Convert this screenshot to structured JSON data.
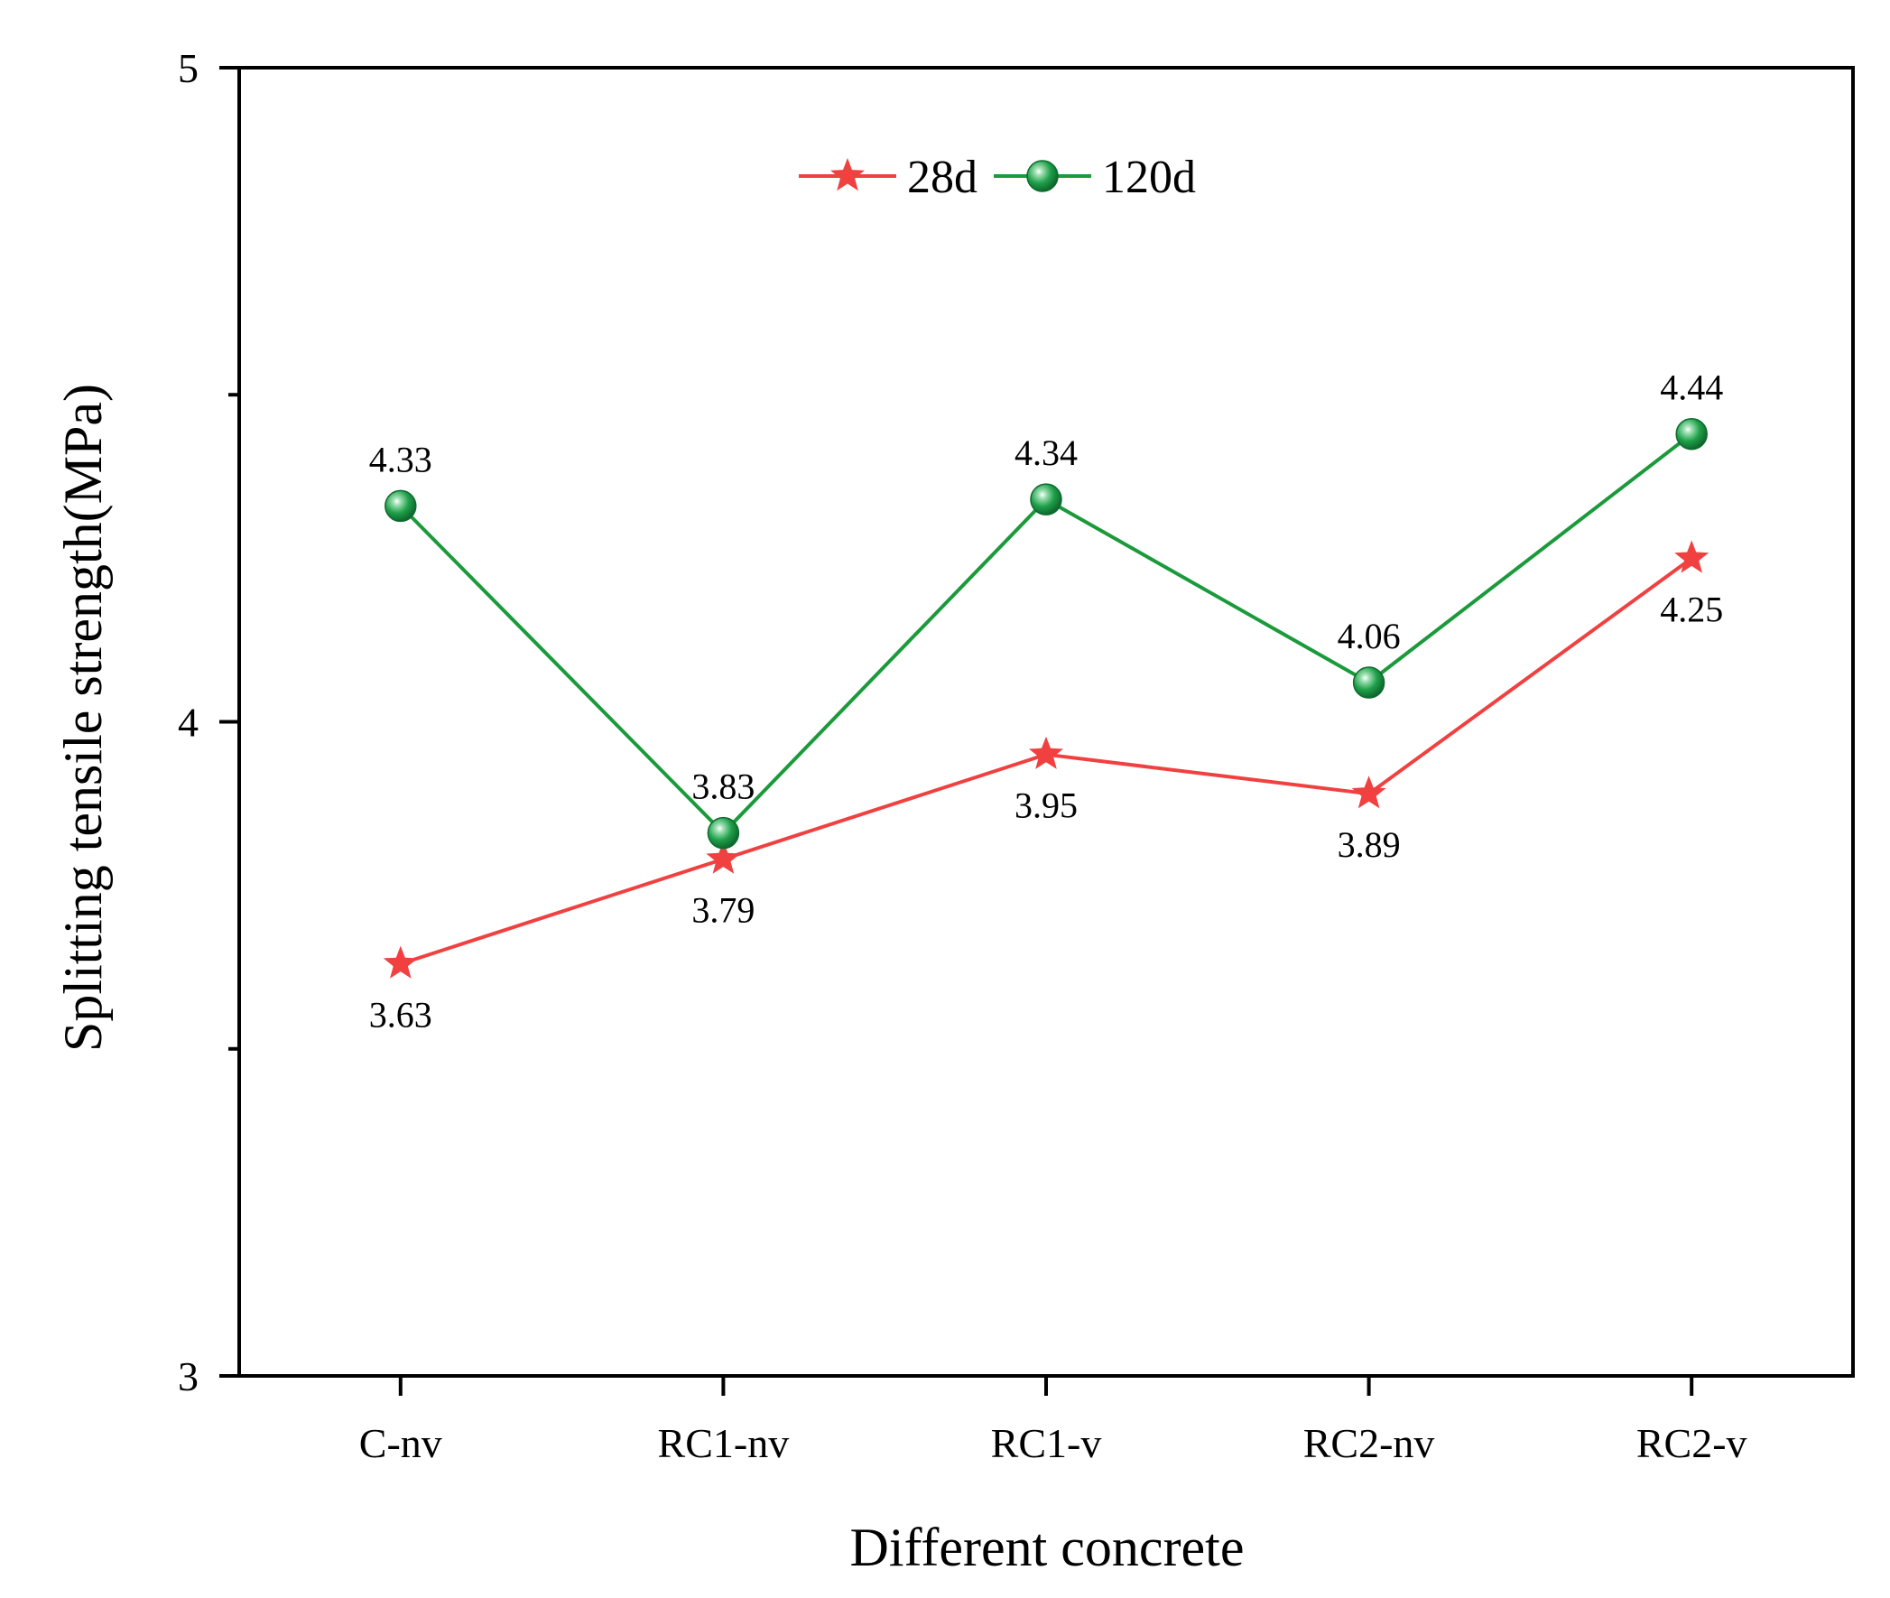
{
  "chart_data": {
    "type": "line",
    "title": "",
    "xlabel": "Different concrete",
    "ylabel": "Splitting tensile strength(MPa)",
    "ylim": [
      3,
      5
    ],
    "y_major_ticks": [
      3,
      4,
      5
    ],
    "y_minor_ticks": [
      3.5,
      4.5
    ],
    "categories": [
      "C-nv",
      "RC1-nv",
      "RC1-v",
      "RC2-nv",
      "RC2-v"
    ],
    "series": [
      {
        "name": "28d",
        "values": [
          3.63,
          3.79,
          3.95,
          3.89,
          4.25
        ],
        "labels": [
          "3.63",
          "3.79",
          "3.95",
          "3.89",
          "4.25"
        ],
        "label_position": "below",
        "color": "#f04040",
        "marker": "star"
      },
      {
        "name": "120d",
        "values": [
          4.33,
          3.83,
          4.34,
          4.06,
          4.44
        ],
        "labels": [
          "4.33",
          "3.83",
          "4.34",
          "4.06",
          "4.44"
        ],
        "label_position": "above",
        "color": "#1a9a3a",
        "marker": "sphere"
      }
    ],
    "legend_placement": "top-center",
    "grid": false
  }
}
